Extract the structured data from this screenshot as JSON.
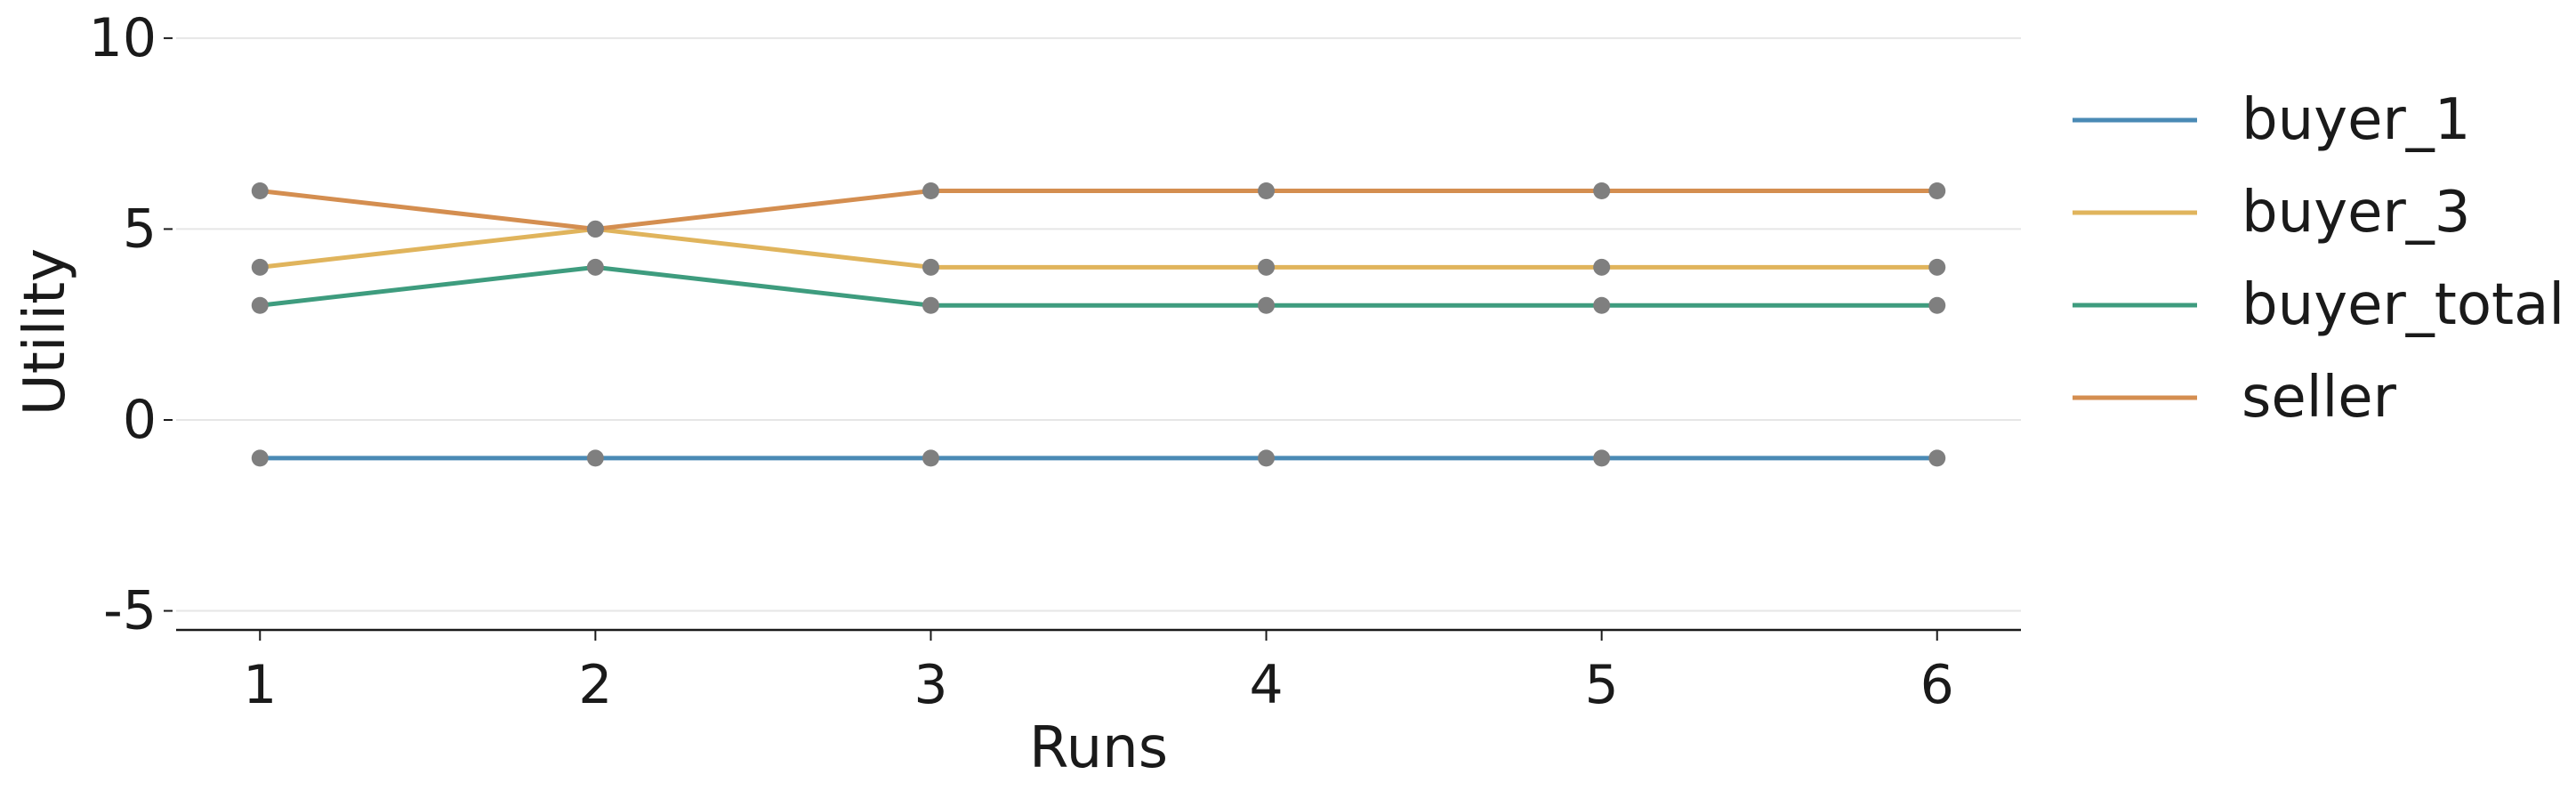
{
  "chart_data": {
    "type": "line",
    "x": [
      1,
      2,
      3,
      4,
      5,
      6
    ],
    "xticks": [
      "1",
      "2",
      "3",
      "4",
      "5",
      "6"
    ],
    "yticks": [
      "10",
      "5",
      "0",
      "-5"
    ],
    "ytick_values": [
      10,
      5,
      0,
      -5
    ],
    "xlabel": "Runs",
    "ylabel": "Utility",
    "xlim": [
      0.75,
      6.25
    ],
    "ylim": [
      -5.5,
      10.3
    ],
    "grid": "horizontal",
    "legend_position": "right",
    "marker_color": "#7f7f7f",
    "series": [
      {
        "name": "buyer_1",
        "color": "#4a8ab5",
        "values": [
          -1,
          -1,
          -1,
          -1,
          -1,
          -1
        ]
      },
      {
        "name": "buyer_3",
        "color": "#e0b45c",
        "values": [
          4,
          5,
          4,
          4,
          4,
          4
        ]
      },
      {
        "name": "buyer_total",
        "color": "#3e9c7e",
        "values": [
          3,
          4,
          3,
          3,
          3,
          3
        ]
      },
      {
        "name": "seller",
        "color": "#d48e50",
        "values": [
          6,
          5,
          6,
          6,
          6,
          6
        ]
      }
    ]
  }
}
